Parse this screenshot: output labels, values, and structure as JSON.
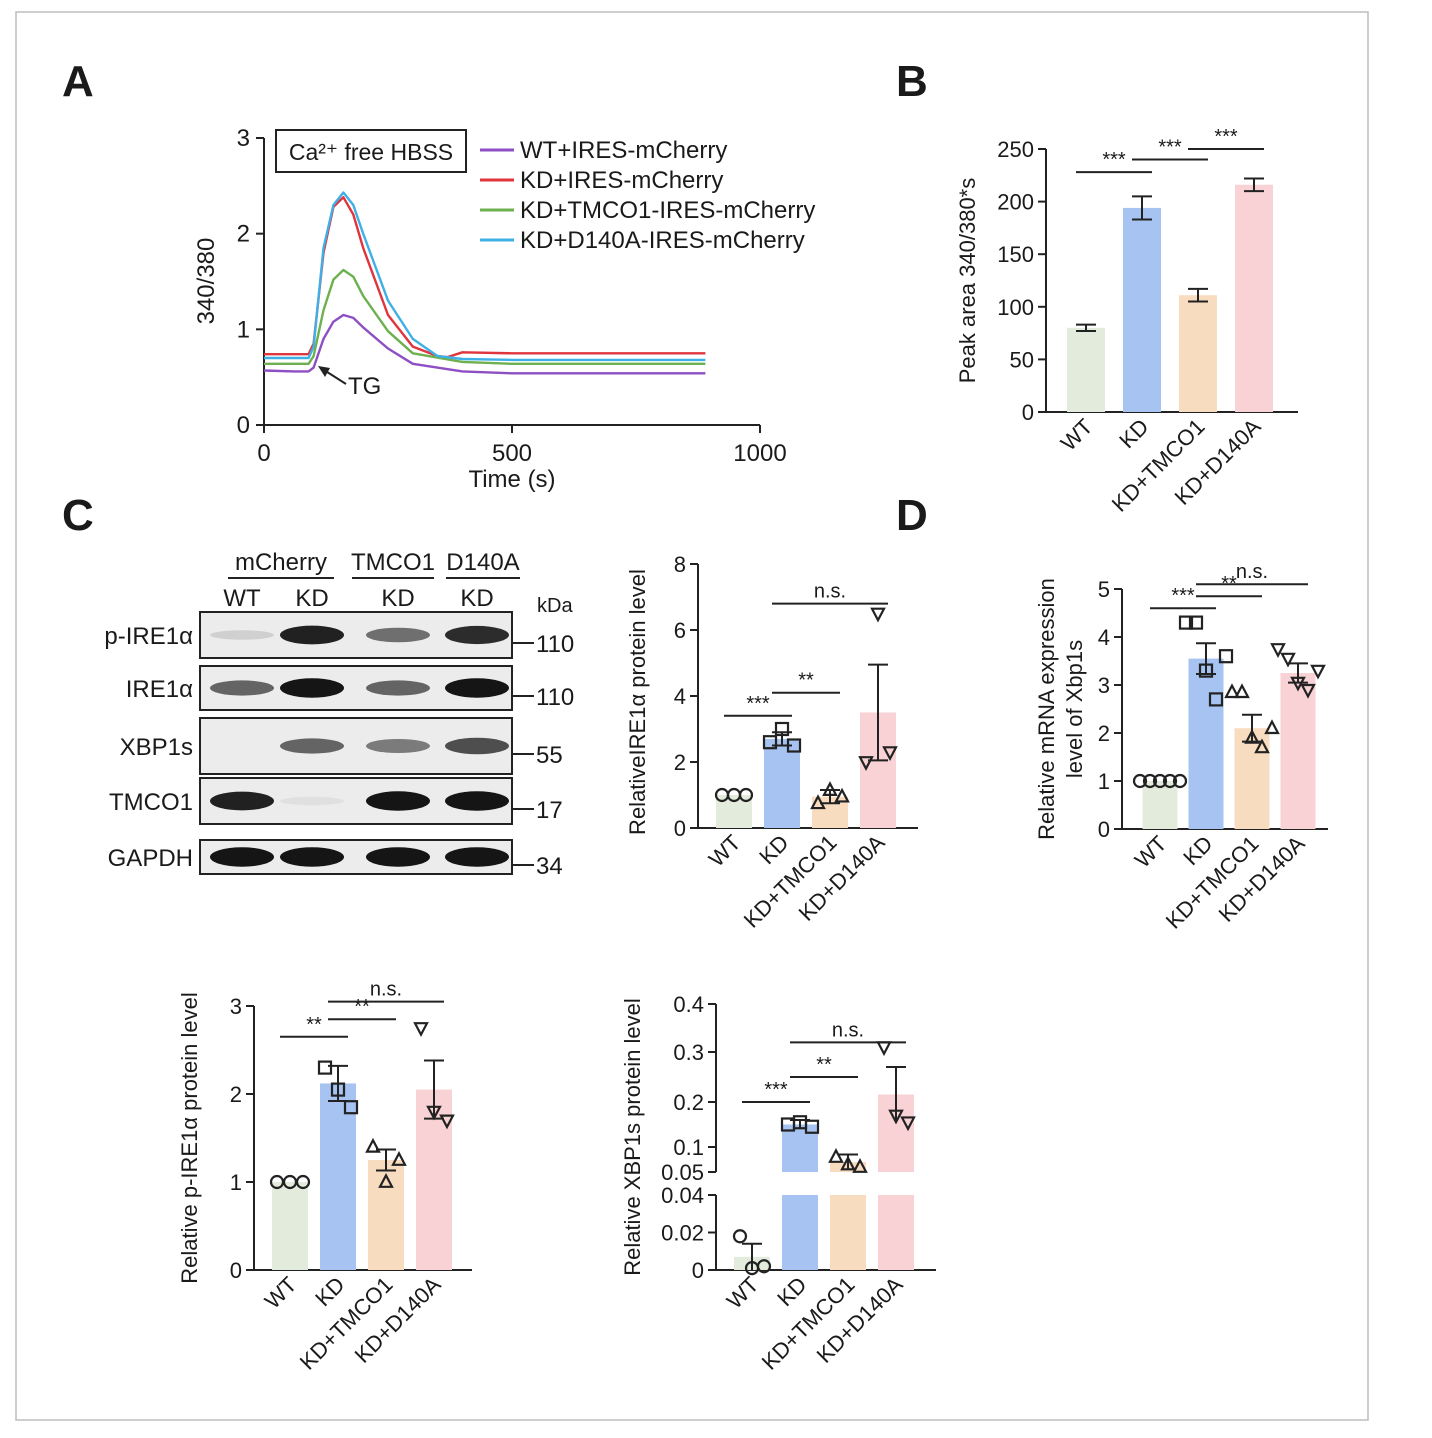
{
  "panels": {
    "A": "A",
    "B": "B",
    "C": "C",
    "D": "D"
  },
  "colors": {
    "WT": "#e3ecdc",
    "KD": "#a6c3f2",
    "KD+TMCO1": "#f8dcc0",
    "KD+D140A": "#f8d2d4",
    "line_wt": "#8e4fc4",
    "line_kd": "#e0353e",
    "line_tmco1": "#6db04f",
    "line_d140a": "#3fb0e6"
  },
  "chart_data": [
    {
      "id": "A",
      "type": "line",
      "xlabel": "Time (s)",
      "ylabel": "340/380",
      "xlim": [
        0,
        1000
      ],
      "ylim": [
        0,
        3
      ],
      "xticks": [
        0,
        500,
        1000
      ],
      "yticks": [
        0,
        1,
        2,
        3
      ],
      "box_label": "Ca²⁺ free HBSS",
      "annotation": "TG",
      "legend_position": "top-right",
      "series": [
        {
          "name": "WT+IRES-mCherry",
          "color": "#8e4fc4",
          "x": [
            0,
            60,
            90,
            100,
            120,
            140,
            160,
            180,
            200,
            250,
            300,
            400,
            500,
            700,
            890
          ],
          "y": [
            0.57,
            0.56,
            0.56,
            0.6,
            0.9,
            1.08,
            1.15,
            1.12,
            1.02,
            0.8,
            0.64,
            0.56,
            0.54,
            0.54,
            0.54
          ]
        },
        {
          "name": "KD+IRES-mCherry",
          "color": "#e0353e",
          "x": [
            0,
            60,
            90,
            100,
            120,
            140,
            160,
            180,
            200,
            250,
            300,
            350,
            370,
            400,
            500,
            700,
            890
          ],
          "y": [
            0.74,
            0.74,
            0.74,
            0.85,
            1.8,
            2.28,
            2.38,
            2.2,
            1.85,
            1.15,
            0.82,
            0.72,
            0.71,
            0.76,
            0.75,
            0.75,
            0.75
          ]
        },
        {
          "name": "KD+TMCO1-IRES-mCherry",
          "color": "#6db04f",
          "x": [
            0,
            60,
            90,
            100,
            120,
            140,
            160,
            180,
            200,
            250,
            300,
            400,
            500,
            700,
            890
          ],
          "y": [
            0.64,
            0.64,
            0.64,
            0.72,
            1.2,
            1.52,
            1.62,
            1.55,
            1.35,
            0.98,
            0.75,
            0.66,
            0.64,
            0.64,
            0.64
          ]
        },
        {
          "name": "KD+D140A-IRES-mCherry",
          "color": "#3fb0e6",
          "x": [
            0,
            60,
            90,
            100,
            120,
            140,
            160,
            180,
            200,
            250,
            300,
            350,
            400,
            500,
            700,
            890
          ],
          "y": [
            0.7,
            0.7,
            0.7,
            0.82,
            1.85,
            2.3,
            2.43,
            2.3,
            2.0,
            1.3,
            0.9,
            0.72,
            0.69,
            0.68,
            0.68,
            0.68
          ]
        }
      ]
    },
    {
      "id": "B",
      "type": "bar",
      "ylabel": "Peak area 340/380*s",
      "categories": [
        "WT",
        "KD",
        "KD+TMCO1",
        "KD+D140A"
      ],
      "values": [
        80,
        194,
        111,
        216
      ],
      "errors": [
        3,
        11,
        6,
        6
      ],
      "ylim": [
        0,
        250
      ],
      "yticks": [
        0,
        50,
        100,
        150,
        200,
        250
      ],
      "significance": [
        {
          "from": 0,
          "to": 1,
          "label": "***",
          "y": 228
        },
        {
          "from": 1,
          "to": 2,
          "label": "***",
          "y": 240
        },
        {
          "from": 2,
          "to": 3,
          "label": "***",
          "y": 250
        }
      ]
    },
    {
      "id": "C-IRE1a",
      "type": "bar",
      "ylabel": "RelativeIRE1α protein level",
      "categories": [
        "WT",
        "KD",
        "KD+TMCO1",
        "KD+D140A"
      ],
      "values": [
        1.0,
        2.7,
        0.95,
        3.5
      ],
      "errors": [
        0,
        0.2,
        0.2,
        1.45
      ],
      "points": [
        [
          1.0,
          1.0,
          1.0
        ],
        [
          2.6,
          3.0,
          2.5
        ],
        [
          0.75,
          1.15,
          0.95
        ],
        [
          2.0,
          6.5,
          2.3
        ]
      ],
      "markers": [
        "circle",
        "square",
        "triangle-up",
        "triangle-down"
      ],
      "ylim": [
        0,
        8
      ],
      "yticks": [
        0,
        2,
        4,
        6,
        8
      ],
      "significance": [
        {
          "from": 0,
          "to": 1,
          "label": "***",
          "y": 3.4
        },
        {
          "from": 1,
          "to": 2,
          "label": "**",
          "y": 4.1
        },
        {
          "from": 1,
          "to": 3,
          "label": "n.s.",
          "y": 6.8
        }
      ]
    },
    {
      "id": "D",
      "type": "bar",
      "ylabel": "Relative mRNA expression level of Xbp1s",
      "ylabel_lines": [
        "Relative mRNA expression",
        "level of Xbp1s"
      ],
      "categories": [
        "WT",
        "KD",
        "KD+TMCO1",
        "KD+D140A"
      ],
      "values": [
        1.0,
        3.55,
        2.1,
        3.25
      ],
      "errors": [
        0,
        0.32,
        0.28,
        0.2
      ],
      "points": [
        [
          1.0,
          1.0,
          1.0,
          1.0,
          1.0
        ],
        [
          4.3,
          4.3,
          3.3,
          2.7,
          3.6
        ],
        [
          2.85,
          2.85,
          1.9,
          1.7,
          2.1
        ],
        [
          3.75,
          3.55,
          3.05,
          2.9,
          3.3
        ]
      ],
      "markers": [
        "circle",
        "square",
        "triangle-up",
        "triangle-down"
      ],
      "ylim": [
        0,
        5
      ],
      "yticks": [
        0,
        1,
        2,
        3,
        4,
        5
      ],
      "significance": [
        {
          "from": 0,
          "to": 1,
          "label": "***",
          "y": 4.6
        },
        {
          "from": 1,
          "to": 2,
          "label": "**",
          "y": 4.85
        },
        {
          "from": 1,
          "to": 3,
          "label": "n.s.",
          "y": 5.1
        }
      ]
    },
    {
      "id": "C-pIRE1a",
      "type": "bar",
      "ylabel": "Relative p-IRE1α protein level",
      "categories": [
        "WT",
        "KD",
        "KD+TMCO1",
        "KD+D140A"
      ],
      "values": [
        1.0,
        2.12,
        1.25,
        2.05
      ],
      "errors": [
        0,
        0.2,
        0.12,
        0.33
      ],
      "points": [
        [
          1.0,
          1.0,
          1.0
        ],
        [
          2.3,
          2.05,
          1.85
        ],
        [
          1.4,
          1.0,
          1.25
        ],
        [
          2.75,
          1.8,
          1.7
        ]
      ],
      "markers": [
        "circle",
        "square",
        "triangle-up",
        "triangle-down"
      ],
      "ylim": [
        0,
        3
      ],
      "yticks": [
        0,
        1,
        2,
        3
      ],
      "significance": [
        {
          "from": 0,
          "to": 1,
          "label": "**",
          "y": 2.65
        },
        {
          "from": 1,
          "to": 2,
          "label": "**",
          "y": 2.85
        },
        {
          "from": 1,
          "to": 3,
          "label": "n.s.",
          "y": 3.05
        }
      ]
    },
    {
      "id": "C-XBP1s",
      "type": "bar",
      "ylabel": "Relative XBP1s protein level",
      "categories": [
        "WT",
        "KD",
        "KD+TMCO1",
        "KD+D140A"
      ],
      "values": [
        0.007,
        0.15,
        0.07,
        0.215
      ],
      "errors": [
        0.007,
        0.01,
        0.015,
        0.055
      ],
      "points": [
        [
          0.018,
          0.001,
          0.002
        ],
        [
          0.15,
          0.155,
          0.145
        ],
        [
          0.08,
          0.065,
          0.06
        ],
        [
          0.31,
          0.17,
          0.155
        ]
      ],
      "markers": [
        "circle",
        "square",
        "triangle-up",
        "triangle-down"
      ],
      "y_break": true,
      "lower_ylim": [
        0,
        0.04
      ],
      "upper_ylim": [
        0.05,
        0.4
      ],
      "yticks_lower": [
        "0",
        "0.02",
        "0.04"
      ],
      "yticks_upper": [
        "0.05",
        "0.1",
        "0.2",
        "0.3",
        "0.4"
      ],
      "significance": [
        {
          "from": 0,
          "to": 1,
          "label": "***",
          "y": 0.2
        },
        {
          "from": 1,
          "to": 2,
          "label": "**",
          "y": 0.25
        },
        {
          "from": 1,
          "to": 3,
          "label": "n.s.",
          "y": 0.32
        }
      ]
    }
  ],
  "blot": {
    "group_labels": [
      "mCherry",
      "TMCO1",
      "D140A"
    ],
    "lane_labels": [
      "WT",
      "KD",
      "KD",
      "KD"
    ],
    "kda_label": "kDa",
    "rows": [
      {
        "label": "p-IRE1α",
        "kda": "110",
        "intensity": [
          0.12,
          0.9,
          0.55,
          0.85
        ]
      },
      {
        "label": "IRE1α",
        "kda": "110",
        "intensity": [
          0.6,
          0.95,
          0.6,
          0.95
        ]
      },
      {
        "label": "XBP1s",
        "kda": "55",
        "intensity": [
          0.0,
          0.6,
          0.5,
          0.7
        ]
      },
      {
        "label": "TMCO1",
        "kda": "17",
        "intensity": [
          0.9,
          0.05,
          0.95,
          0.95
        ]
      },
      {
        "label": "GAPDH",
        "kda": "34",
        "intensity": [
          0.95,
          0.95,
          0.95,
          0.95
        ]
      }
    ]
  }
}
